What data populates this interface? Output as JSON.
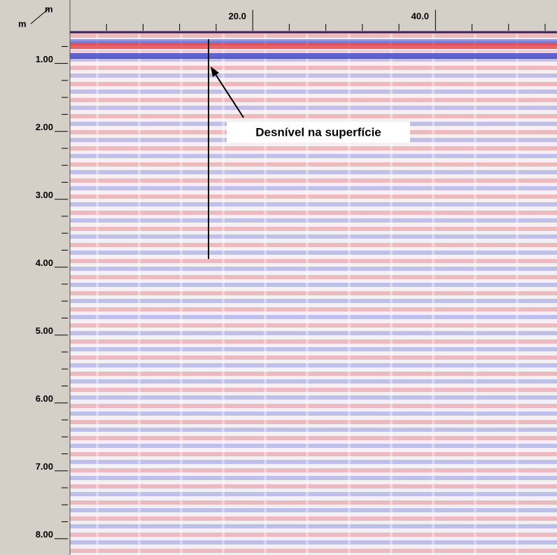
{
  "corner": {
    "top_unit": "m",
    "left_unit": "m"
  },
  "distance_axis": {
    "xlim": [
      0,
      53.3
    ],
    "ticks": [
      {
        "value": 20,
        "label": "20.0"
      },
      {
        "value": 40,
        "label": "40.0"
      }
    ]
  },
  "depth_axis": {
    "ylim": [
      0.56,
      8.24
    ],
    "ticks": [
      {
        "value": 1,
        "label": "1.00"
      },
      {
        "value": 2,
        "label": "2.00"
      },
      {
        "value": 3,
        "label": "3.00"
      },
      {
        "value": 4,
        "label": "4.00"
      },
      {
        "value": 5,
        "label": "5.00"
      },
      {
        "value": 6,
        "label": "6.00"
      },
      {
        "value": 7,
        "label": "7.00"
      },
      {
        "value": 8,
        "label": "8.00"
      }
    ]
  },
  "annotation": "Desnível na superfície"
}
